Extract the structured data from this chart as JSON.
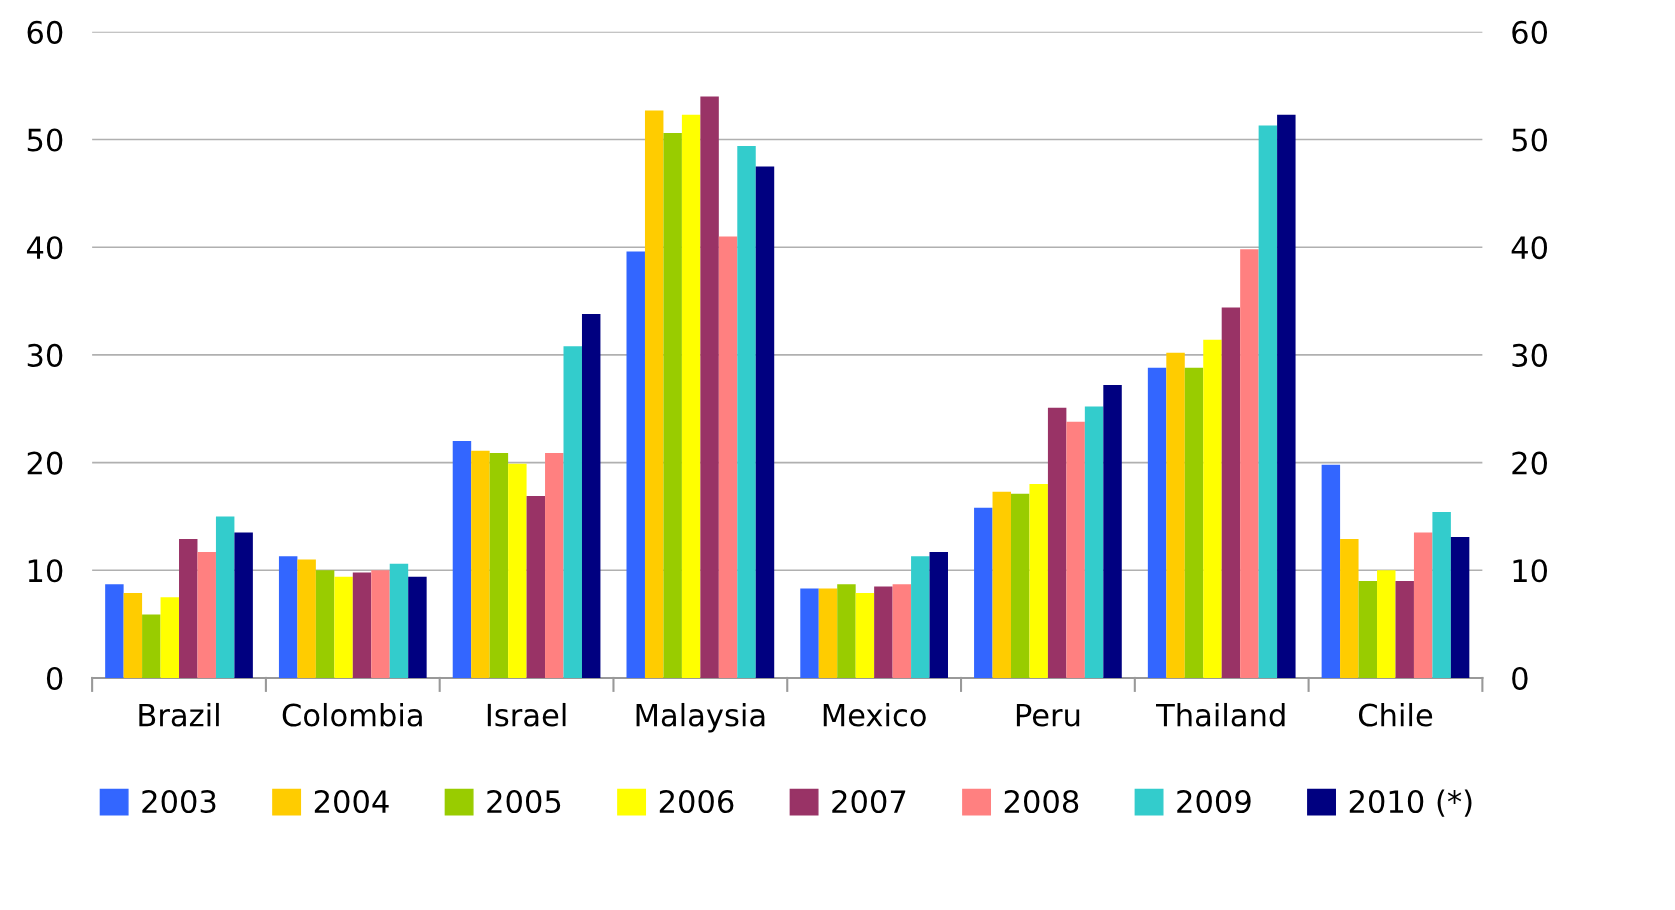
{
  "chart_data": {
    "type": "bar",
    "categories": [
      "Brazil",
      "Colombia",
      "Israel",
      "Malaysia",
      "Mexico",
      "Peru",
      "Thailand",
      "Chile"
    ],
    "series": [
      {
        "name": "2003",
        "color": "#3366ff",
        "values": [
          8.7,
          11.3,
          22.0,
          39.6,
          8.3,
          15.8,
          28.8,
          19.8
        ]
      },
      {
        "name": "2004",
        "color": "#ffcc00",
        "values": [
          7.9,
          11.0,
          21.1,
          52.7,
          8.3,
          17.3,
          30.2,
          12.9
        ]
      },
      {
        "name": "2005",
        "color": "#99cc00",
        "values": [
          5.9,
          10.0,
          20.9,
          50.6,
          8.7,
          17.1,
          28.8,
          9.0
        ]
      },
      {
        "name": "2006",
        "color": "#ffff00",
        "values": [
          7.5,
          9.4,
          19.9,
          52.3,
          7.9,
          18.0,
          31.4,
          10.0
        ]
      },
      {
        "name": "2007",
        "color": "#993366",
        "values": [
          12.9,
          9.8,
          16.9,
          54.0,
          8.5,
          25.1,
          34.4,
          9.0
        ]
      },
      {
        "name": "2008",
        "color": "#ff8080",
        "values": [
          11.7,
          10.0,
          20.9,
          41.0,
          8.7,
          23.8,
          39.8,
          13.5
        ]
      },
      {
        "name": "2009",
        "color": "#33cccc",
        "values": [
          15.0,
          10.6,
          30.8,
          49.4,
          11.3,
          25.2,
          51.3,
          15.4
        ]
      },
      {
        "name": "2010 (*)",
        "color": "#000080",
        "values": [
          13.5,
          9.4,
          33.8,
          47.5,
          11.7,
          27.2,
          52.3,
          13.1
        ]
      }
    ],
    "ylim": [
      0,
      60
    ],
    "yticks": [
      0,
      10,
      20,
      30,
      40,
      50,
      60
    ],
    "y2lim": [
      0,
      60
    ],
    "y2ticks": [
      0,
      10,
      20,
      30,
      40,
      50,
      60
    ],
    "grid": "y",
    "legend": "bottom"
  }
}
